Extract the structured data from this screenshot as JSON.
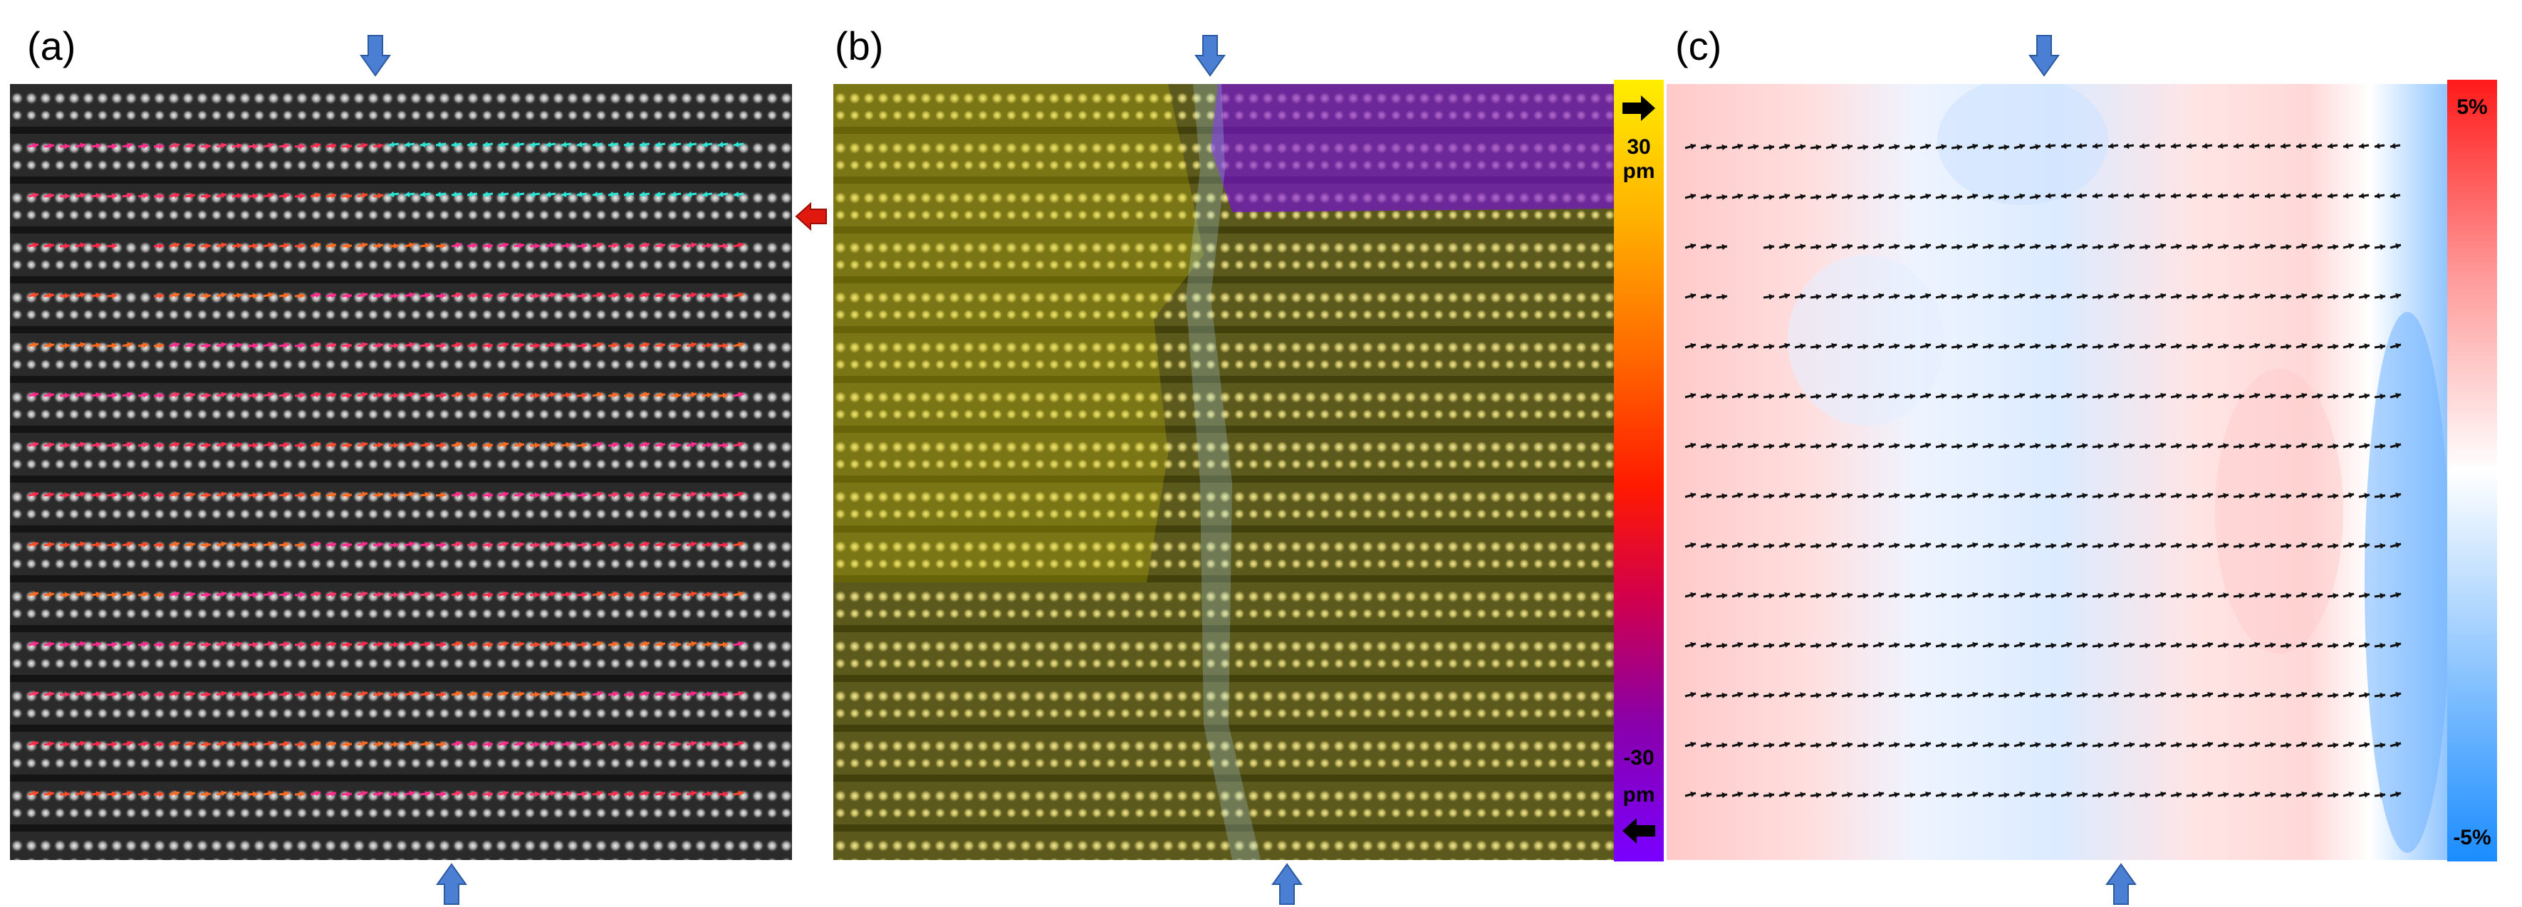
{
  "panels": [
    {
      "label": "(a)"
    },
    {
      "label": "(b)"
    },
    {
      "label": "(c)"
    }
  ],
  "colorbar_b": {
    "top_value": "30",
    "top_unit": "pm",
    "bottom_value": "-30",
    "bottom_unit": "pm",
    "gradient": [
      "#ffee00",
      "#ffb000",
      "#ff6a00",
      "#ff1a00",
      "#d3004a",
      "#8a00a8",
      "#7a00ff"
    ]
  },
  "colorbar_c": {
    "top_value": "5%",
    "bottom_value": "-5%",
    "gradient": [
      "#ff1a1a",
      "#ff9999",
      "#ffffff",
      "#8fc6ff",
      "#1a8cff"
    ]
  },
  "marker_colors": {
    "domain_wall_marker": "#4a7fd4",
    "row_marker": "#e0190f"
  },
  "icons": {
    "down_marker": "down-arrow-icon",
    "up_marker": "up-arrow-icon",
    "left_marker": "left-arrow-icon",
    "colorbar_right": "right-arrow-icon",
    "colorbar_left": "left-arrow-icon"
  }
}
